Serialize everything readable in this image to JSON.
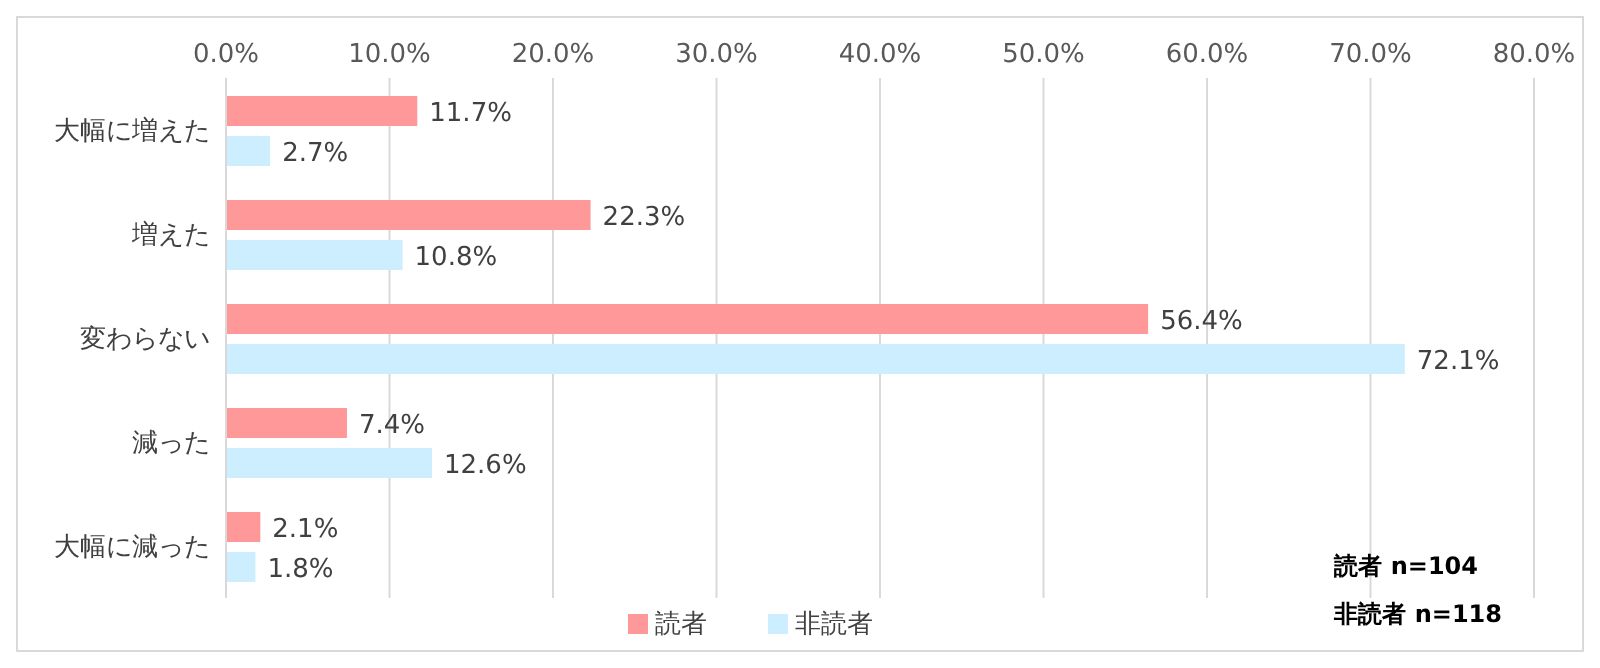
{
  "chart_data": {
    "type": "bar",
    "orientation": "horizontal",
    "categories": [
      "大幅に増えた",
      "増えた",
      "変わらない",
      "減った",
      "大幅に減った"
    ],
    "series": [
      {
        "name": "読者",
        "color": "#ff9999",
        "values": [
          11.7,
          22.3,
          56.4,
          7.4,
          2.1
        ],
        "value_labels": [
          "11.7%",
          "22.3%",
          "56.4%",
          "7.4%",
          "2.1%"
        ]
      },
      {
        "name": "非読者",
        "color": "#cceeff",
        "values": [
          2.7,
          10.8,
          72.1,
          12.6,
          1.8
        ],
        "value_labels": [
          "2.7%",
          "10.8%",
          "72.1%",
          "12.6%",
          "1.8%"
        ]
      }
    ],
    "xlim": [
      0,
      80
    ],
    "xticks": [
      {
        "value": 0,
        "label": "0.0%"
      },
      {
        "value": 10,
        "label": "10.0%"
      },
      {
        "value": 20,
        "label": "20.0%"
      },
      {
        "value": 30,
        "label": "30.0%"
      },
      {
        "value": 40,
        "label": "40.0%"
      },
      {
        "value": 50,
        "label": "50.0%"
      },
      {
        "value": 60,
        "label": "60.0%"
      },
      {
        "value": 70,
        "label": "70.0%"
      },
      {
        "value": 80,
        "label": "80.0%"
      }
    ],
    "grid": "x",
    "legend": "bottom",
    "annotations": [
      "読者 n=104",
      "非読者 n=118"
    ]
  }
}
